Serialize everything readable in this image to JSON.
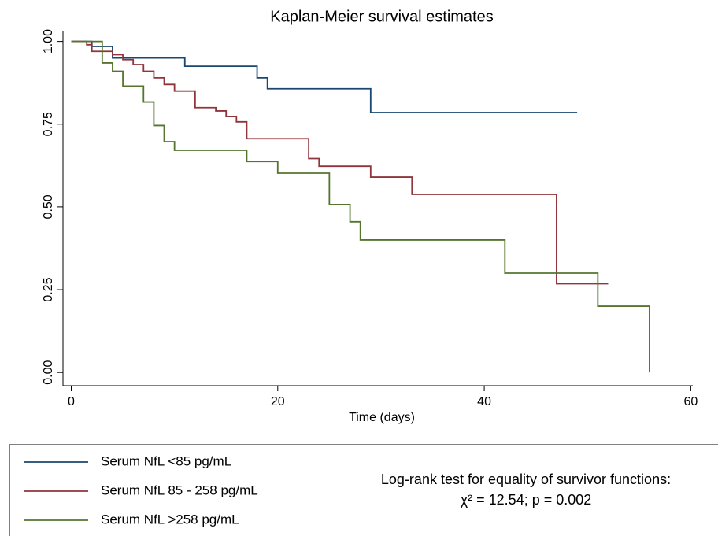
{
  "chart_data": {
    "type": "step",
    "title": "Kaplan-Meier survival estimates",
    "xlabel": "Time (days)",
    "xlim": [
      -0.8,
      60.2
    ],
    "ylim": [
      -0.04,
      1.03
    ],
    "xticks": [
      0,
      20,
      40,
      60
    ],
    "yticks": [
      {
        "value": 1,
        "label": "1.00"
      },
      {
        "value": 0.75,
        "label": "0.75"
      },
      {
        "value": 0.5,
        "label": "0.50"
      },
      {
        "value": 0.25,
        "label": "0.25"
      },
      {
        "value": 0,
        "label": "0.00"
      }
    ],
    "series": [
      {
        "name": "Serum NfL <85 pg/mL",
        "color": "#1a476f",
        "x": [
          0,
          2,
          4,
          11,
          18,
          19,
          29,
          49
        ],
        "values": [
          1,
          0.985,
          0.95,
          0.925,
          0.89,
          0.857,
          0.785,
          0.785
        ]
      },
      {
        "name": "Serum NfL 85 - 258 pg/mL",
        "color": "#90353b",
        "x": [
          0,
          1.5,
          2,
          4,
          5,
          6,
          7,
          8,
          9,
          10,
          12,
          14,
          15,
          16,
          17,
          23,
          24,
          29,
          33,
          47,
          52
        ],
        "values": [
          1,
          0.99,
          0.97,
          0.96,
          0.945,
          0.93,
          0.91,
          0.89,
          0.87,
          0.85,
          0.8,
          0.79,
          0.773,
          0.757,
          0.706,
          0.646,
          0.623,
          0.59,
          0.538,
          0.268,
          0.268
        ]
      },
      {
        "name": "Serum NfL >258 pg/mL",
        "color": "#55752f",
        "x": [
          0,
          3,
          4,
          5,
          7,
          8,
          9,
          10,
          17,
          20,
          25,
          27,
          28,
          42,
          51,
          56
        ],
        "values": [
          1,
          0.935,
          0.91,
          0.865,
          0.817,
          0.746,
          0.697,
          0.671,
          0.637,
          0.602,
          0.507,
          0.455,
          0.4,
          0.3,
          0.2,
          0
        ]
      }
    ],
    "annotation": [
      "Log-rank test for equality of survivor functions:",
      "χ² = 12.54; p = 0.002"
    ]
  }
}
